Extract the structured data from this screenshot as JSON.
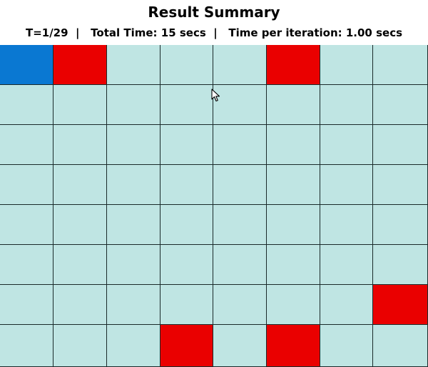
{
  "header": {
    "title": "Result Summary",
    "step_text": "T=1/29",
    "sep": "|",
    "total_time_text": "Total Time: 15 secs",
    "iter_time_text": "Time per iteration: 1.00 secs"
  },
  "grid": {
    "rows": 8,
    "cols": 8,
    "colors": {
      "empty": "#bfe5e3",
      "agent": "#0a78d2",
      "obstacle": "#ea0000",
      "line": "#1a2a2a"
    },
    "cells": [
      [
        "agent",
        "obstacle",
        "empty",
        "empty",
        "empty",
        "obstacle",
        "empty",
        "empty"
      ],
      [
        "empty",
        "empty",
        "empty",
        "empty",
        "empty",
        "empty",
        "empty",
        "empty"
      ],
      [
        "empty",
        "empty",
        "empty",
        "empty",
        "empty",
        "empty",
        "empty",
        "empty"
      ],
      [
        "empty",
        "empty",
        "empty",
        "empty",
        "empty",
        "empty",
        "empty",
        "empty"
      ],
      [
        "empty",
        "empty",
        "empty",
        "empty",
        "empty",
        "empty",
        "empty",
        "empty"
      ],
      [
        "empty",
        "empty",
        "empty",
        "empty",
        "empty",
        "empty",
        "empty",
        "empty"
      ],
      [
        "empty",
        "empty",
        "empty",
        "empty",
        "empty",
        "empty",
        "empty",
        "obstacle"
      ],
      [
        "empty",
        "empty",
        "empty",
        "obstacle",
        "empty",
        "obstacle",
        "empty",
        "empty"
      ]
    ]
  },
  "cursor": {
    "icon": "mouse-pointer-icon"
  }
}
